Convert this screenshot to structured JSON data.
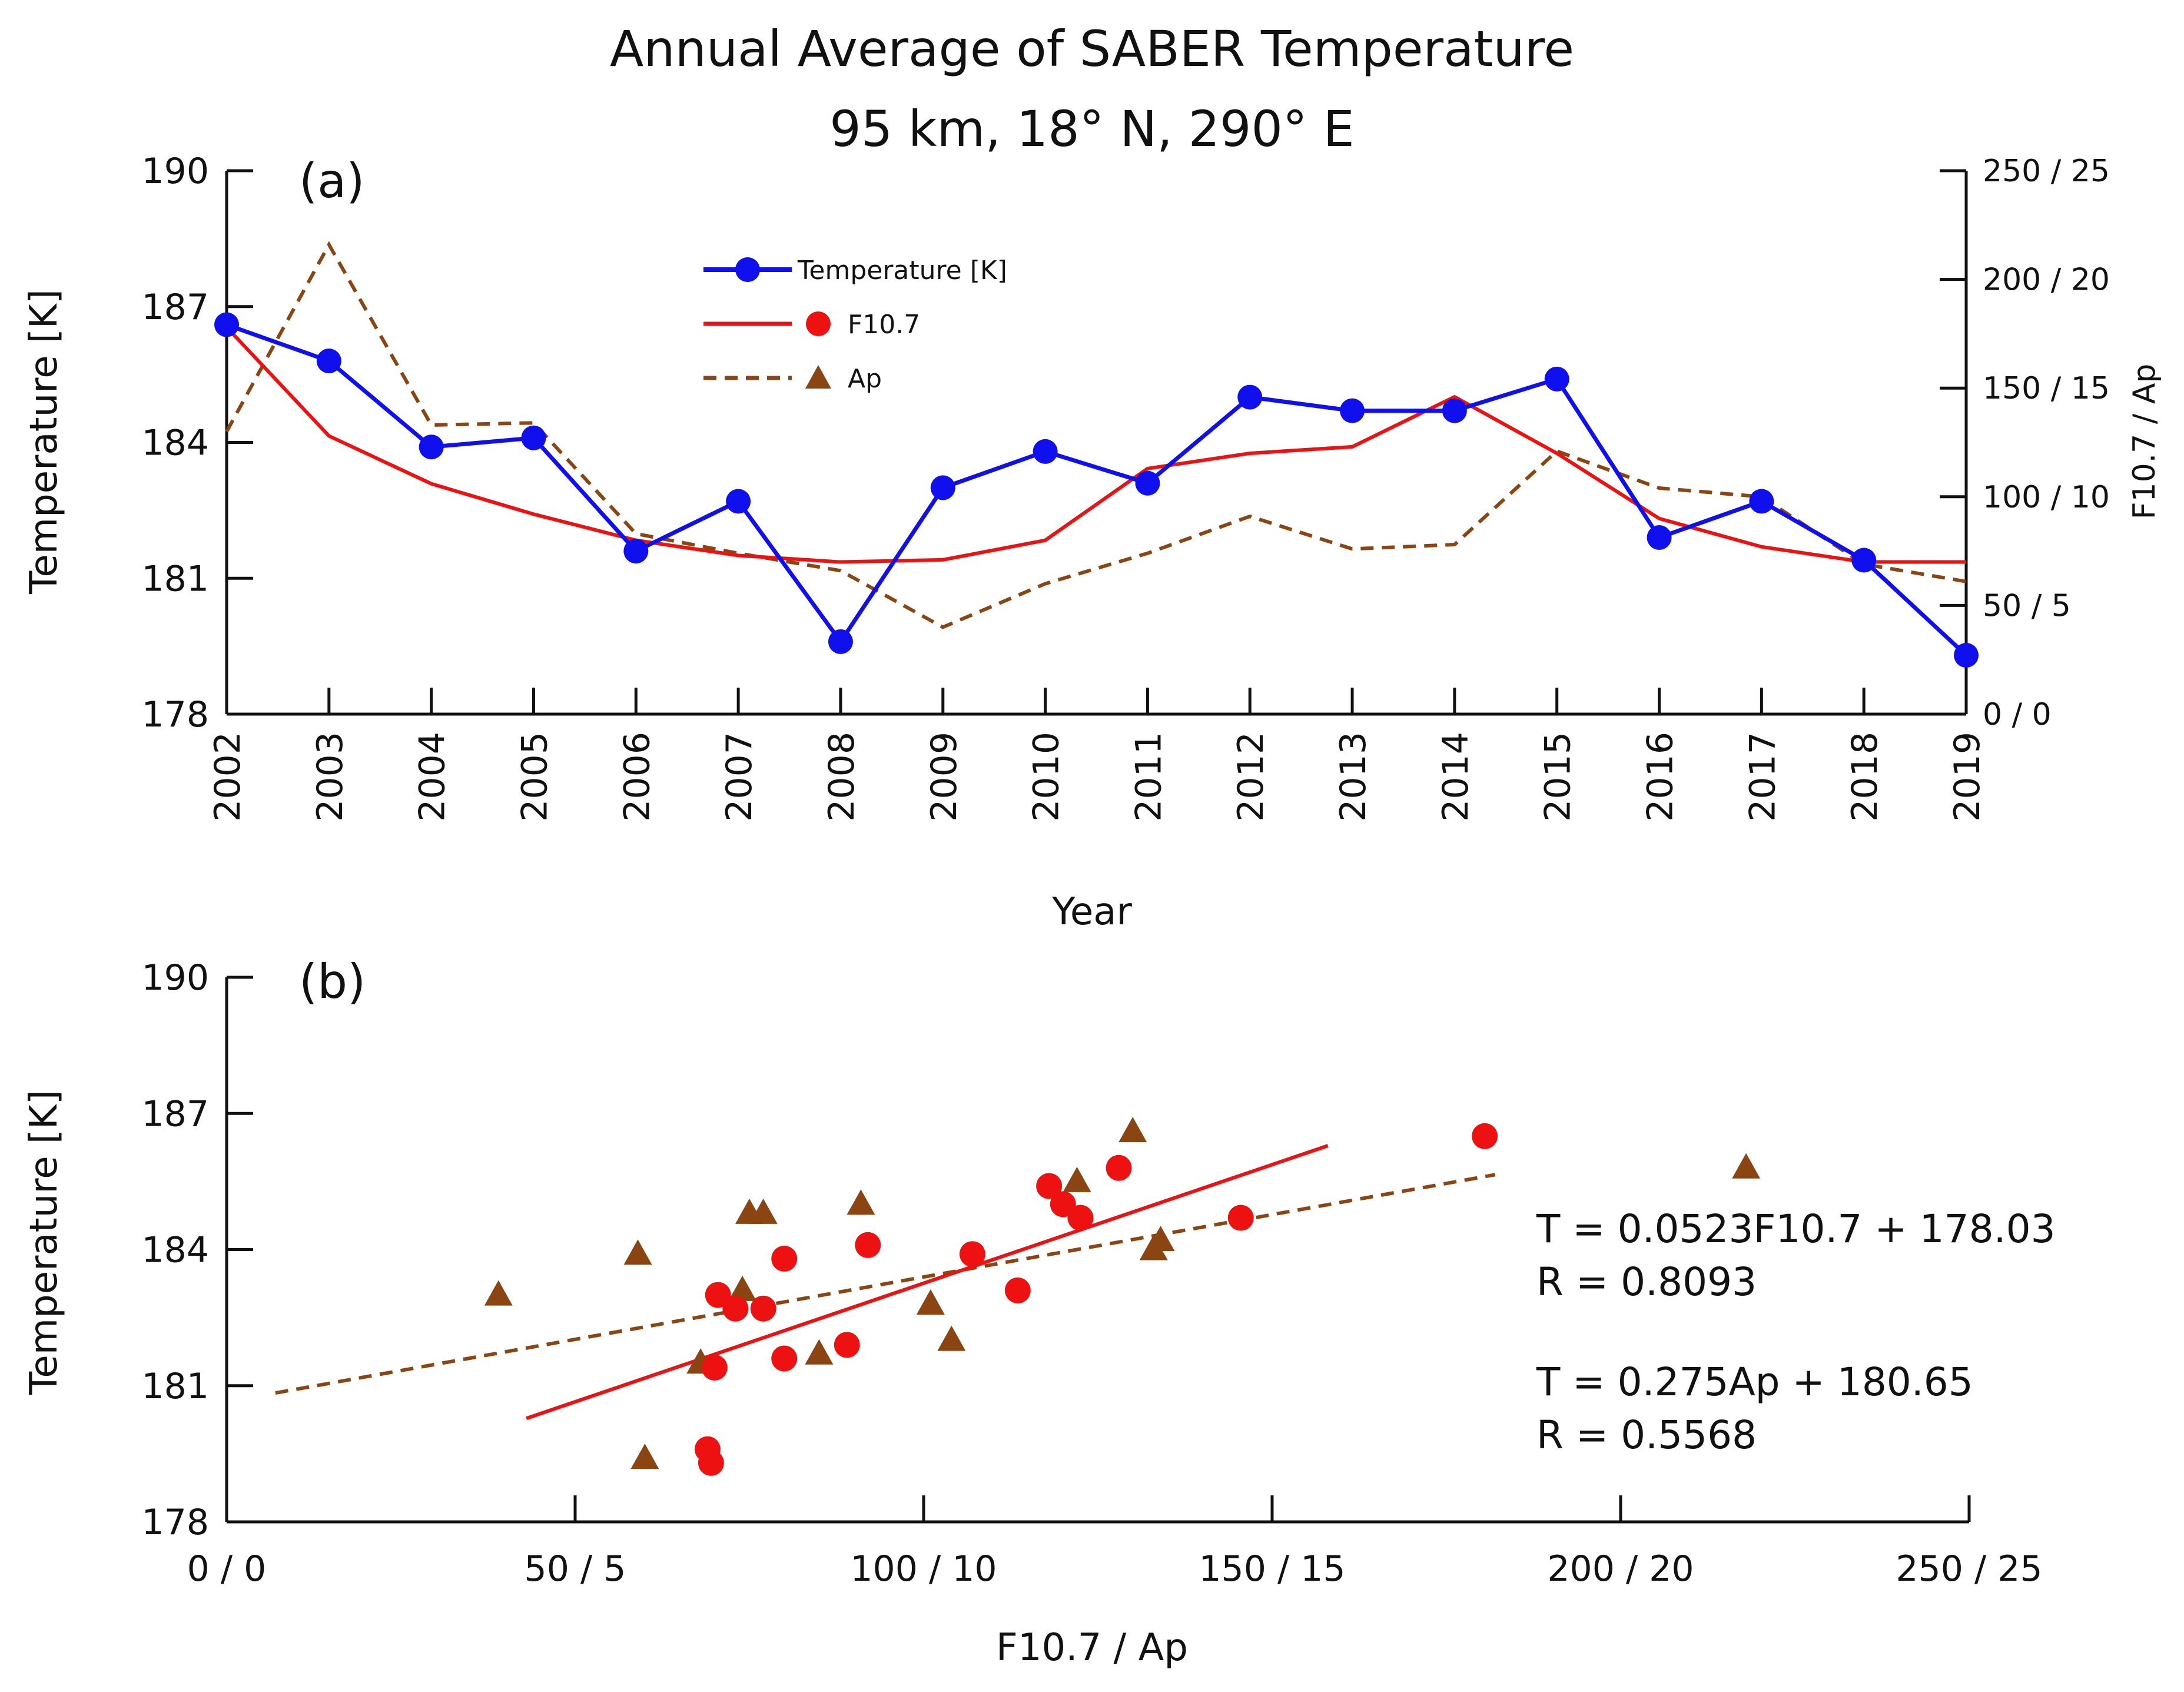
{
  "title": "Annual Average of SABER Temperature",
  "subtitle": "95 km, 18° N, 290° E",
  "colors": {
    "temperature": "#1010ee",
    "f107": "#ee1111",
    "ap": "#8b4513",
    "axis": "#111111"
  },
  "chart_data": [
    {
      "type": "line",
      "panel_label": "(a)",
      "x": [
        2002,
        2003,
        2004,
        2005,
        2006,
        2007,
        2008,
        2009,
        2010,
        2011,
        2012,
        2013,
        2014,
        2015,
        2016,
        2017,
        2018,
        2019
      ],
      "x_tick_labels": [
        "2002",
        "2003",
        "2004",
        "2005",
        "2006",
        "2007",
        "2008",
        "2009",
        "2010",
        "2011",
        "2012",
        "2013",
        "2014",
        "2015",
        "2016",
        "2017",
        "2018",
        "2019"
      ],
      "xlabel": "Year",
      "ylabel": "Temperature [K]",
      "ylim": [
        178,
        190
      ],
      "y_ticks": [
        178,
        181,
        184,
        187,
        190
      ],
      "y_tick_labels": [
        "178",
        "181",
        "184",
        "187",
        "190"
      ],
      "y2label": "F10.7 / Ap",
      "y2lim": [
        0,
        250
      ],
      "y2_ticks": [
        0,
        50,
        100,
        150,
        200,
        250
      ],
      "y2_tick_labels": [
        "0 / 0",
        "50 / 5",
        "100 / 10",
        "150 / 15",
        "200 / 20",
        "250 / 25"
      ],
      "legend": [
        "Temperature [K]",
        "F10.7",
        "Ap"
      ],
      "legend_position": "upper-center",
      "series": [
        {
          "name": "Temperature [K]",
          "axis": "left",
          "style": "line-markers",
          "values": [
            186.6,
            185.8,
            183.9,
            184.1,
            181.6,
            182.7,
            179.6,
            183.0,
            183.8,
            183.1,
            185.0,
            184.7,
            184.7,
            185.4,
            181.9,
            182.7,
            181.4,
            179.3
          ]
        },
        {
          "name": "F10.7",
          "axis": "right",
          "style": "solid",
          "values": [
            178,
            128,
            106,
            92,
            80,
            73,
            70,
            71,
            80,
            113,
            120,
            123,
            146,
            120,
            90,
            77,
            70,
            70
          ]
        },
        {
          "name": "Ap",
          "axis": "right",
          "style": "dashed",
          "values": [
            13.0,
            21.6,
            13.3,
            13.4,
            8.3,
            7.4,
            6.6,
            4.0,
            6.0,
            7.4,
            9.1,
            7.6,
            7.8,
            12.1,
            10.4,
            10.0,
            6.9,
            6.1
          ]
        }
      ]
    },
    {
      "type": "scatter",
      "panel_label": "(b)",
      "xlabel": "F10.7 / Ap",
      "ylabel": "Temperature [K]",
      "xlim": [
        0,
        250
      ],
      "ylim": [
        178,
        190
      ],
      "x_ticks": [
        0,
        50,
        100,
        150,
        200,
        250
      ],
      "x_tick_labels": [
        "0 / 0",
        "50 / 5",
        "100 / 10",
        "150 / 15",
        "200 / 20",
        "250 / 25"
      ],
      "y_ticks": [
        178,
        181,
        184,
        187,
        190
      ],
      "y_tick_labels": [
        "178",
        "181",
        "184",
        "187",
        "190"
      ],
      "series": [
        {
          "name": "F10.7",
          "marker": "circle",
          "points": [
            [
              180.5,
              186.5
            ],
            [
              128,
              185.8
            ],
            [
              118,
              185.4
            ],
            [
              120,
              185.0
            ],
            [
              122.5,
              184.7
            ],
            [
              145.5,
              184.7
            ],
            [
              92,
              184.1
            ],
            [
              107,
              183.9
            ],
            [
              80,
              183.8
            ],
            [
              113.5,
              183.1
            ],
            [
              70.5,
              183.0
            ],
            [
              73,
              182.7
            ],
            [
              77,
              182.7
            ],
            [
              80,
              181.6
            ],
            [
              89,
              181.9
            ],
            [
              70,
              181.4
            ],
            [
              69,
              179.6
            ],
            [
              69.5,
              179.3
            ]
          ]
        },
        {
          "name": "Ap",
          "marker": "triangle",
          "x_scale": 10,
          "points": [
            [
              21.8,
              185.8
            ],
            [
              13.0,
              186.6
            ],
            [
              12.2,
              185.5
            ],
            [
              9.1,
              185.0
            ],
            [
              7.5,
              184.8
            ],
            [
              7.7,
              184.8
            ],
            [
              5.9,
              183.9
            ],
            [
              13.4,
              184.2
            ],
            [
              13.3,
              184.0
            ],
            [
              3.9,
              183.0
            ],
            [
              7.4,
              183.1
            ],
            [
              10.1,
              182.8
            ],
            [
              10.4,
              182.0
            ],
            [
              8.5,
              181.7
            ],
            [
              6.8,
              181.5
            ],
            [
              6.0,
              179.4
            ]
          ]
        }
      ],
      "fits": [
        {
          "name": "F10.7 fit",
          "style": "solid",
          "x": [
            43,
            158
          ],
          "y": [
            180.28,
            186.29
          ]
        },
        {
          "name": "Ap fit",
          "style": "dashed",
          "x": [
            7,
            182
          ],
          "y": [
            180.84,
            185.65
          ]
        }
      ],
      "annotations": [
        {
          "lines": [
            "T = 0.0523F10.7 + 178.03",
            "R = 0.8093"
          ]
        },
        {
          "lines": [
            "T = 0.275Ap + 180.65",
            "R = 0.5568"
          ]
        }
      ]
    }
  ]
}
